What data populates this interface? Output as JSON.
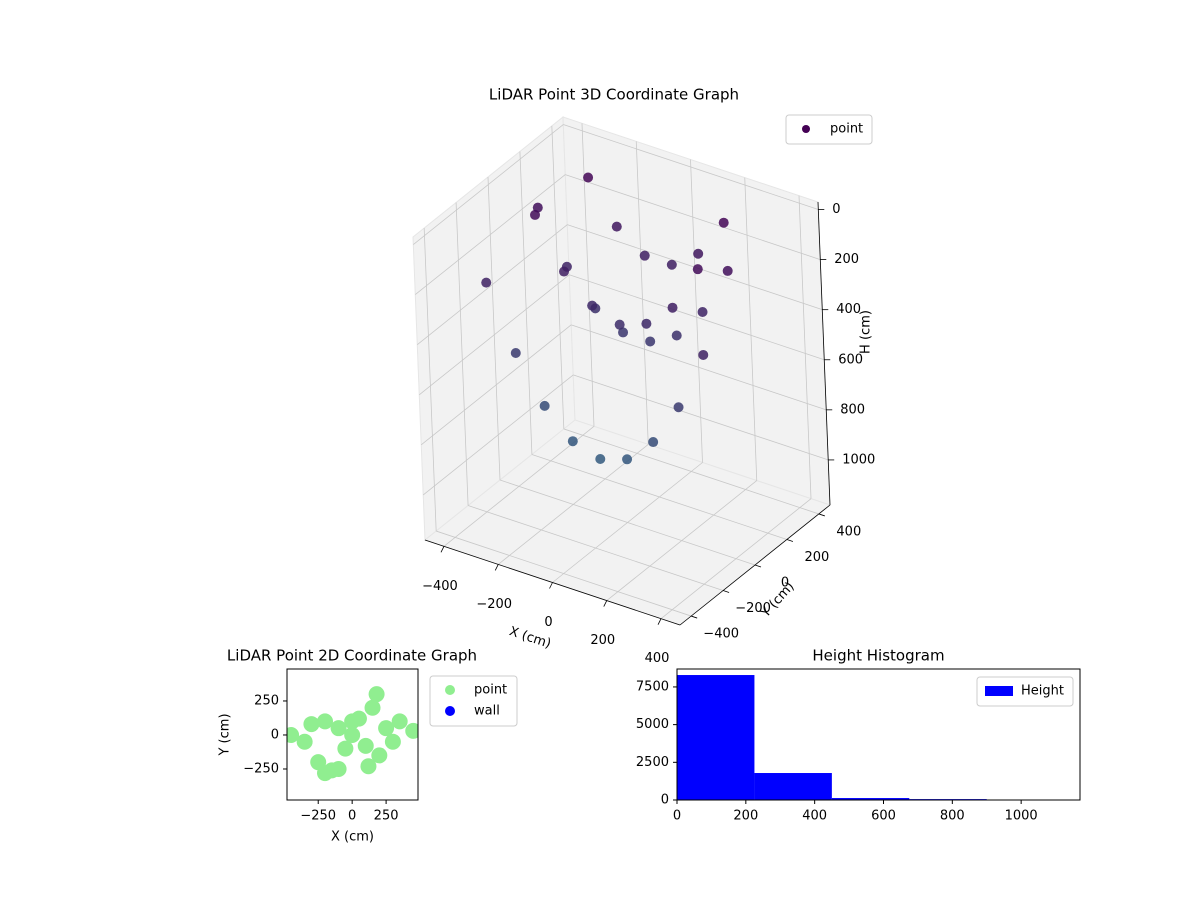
{
  "chart_data": [
    {
      "type": "scatter3d",
      "title": "LiDAR Point 3D Coordinate Graph",
      "xlabel": "X (cm)",
      "ylabel": "Y (cm)",
      "zlabel": "H (cm)",
      "xlim": [
        -470,
        470
      ],
      "ylim": [
        -470,
        470
      ],
      "zlim": [
        -30,
        1180
      ],
      "zinverted": true,
      "xticks": [
        {
          "value": -400,
          "label": "−400"
        },
        {
          "value": -200,
          "label": "−200"
        },
        0,
        200,
        400
      ],
      "yticks": [
        {
          "value": -400,
          "label": "−400"
        },
        {
          "value": -200,
          "label": "−200"
        },
        0,
        200,
        400
      ],
      "zticks": [
        0,
        200,
        400,
        600,
        800,
        1000
      ],
      "colormap": [
        "#440154",
        "#2c7a8e"
      ],
      "legend_loc": "upper right",
      "series": [
        {
          "name": "point",
          "color": "#440154",
          "x": [
            -400,
            -300,
            -200,
            -100,
            0,
            100,
            200,
            300,
            400,
            -350,
            -250,
            -150,
            -50,
            50,
            150,
            250,
            350,
            -250,
            -150,
            -50,
            50,
            150,
            250,
            -300,
            -200,
            -100,
            0,
            100,
            200,
            300
          ],
          "y": [
            -150,
            -150,
            -150,
            -150,
            -150,
            -150,
            -150,
            -150,
            -150,
            100,
            100,
            100,
            100,
            100,
            100,
            100,
            100,
            250,
            250,
            250,
            250,
            250,
            250,
            0,
            0,
            0,
            0,
            0,
            0,
            0
          ],
          "z": [
            290,
            535,
            710,
            815,
            850,
            815,
            710,
            535,
            290,
            100,
            300,
            430,
            490,
            490,
            430,
            300,
            100,
            20,
            180,
            260,
            260,
            180,
            20,
            60,
            250,
            350,
            390,
            350,
            250,
            60
          ]
        }
      ]
    },
    {
      "type": "scatter",
      "title": "LiDAR Point 2D Coordinate Graph",
      "xlabel": "X (cm)",
      "ylabel": "Y (cm)",
      "xlim": [
        -480,
        485
      ],
      "ylim": [
        -478,
        485
      ],
      "xticks": [
        {
          "value": -250,
          "label": "−250"
        },
        0,
        250
      ],
      "yticks": [
        {
          "value": -250,
          "label": "−250"
        },
        0,
        250
      ],
      "legend_loc": "outside upper left",
      "series": [
        {
          "name": "point",
          "color": "#90ee90",
          "x": [
            -450,
            -350,
            -300,
            -250,
            -200,
            -150,
            -100,
            -50,
            0,
            50,
            100,
            150,
            200,
            180,
            250,
            300,
            350,
            450,
            -100,
            120,
            -200,
            0
          ],
          "y": [
            0,
            -50,
            80,
            -200,
            100,
            -260,
            50,
            -100,
            0,
            120,
            -80,
            200,
            -150,
            300,
            50,
            -50,
            100,
            30,
            -250,
            -230,
            -280,
            100
          ]
        },
        {
          "name": "wall",
          "color": "#0000ff",
          "x": [],
          "y": []
        }
      ]
    },
    {
      "type": "histogram",
      "title": "Height Histogram",
      "xlim": [
        0,
        1171
      ],
      "ylim": [
        0,
        8690
      ],
      "xticks": [
        0,
        200,
        400,
        600,
        800,
        1000
      ],
      "yticks": [
        0,
        2500,
        5000,
        7500
      ],
      "legend_loc": "upper right",
      "series": [
        {
          "name": "Height",
          "color": "#0000ff",
          "bins": [
            0,
            225,
            450,
            675,
            900,
            1125
          ],
          "values": [
            8290,
            1790,
            130,
            60,
            10
          ]
        }
      ]
    }
  ]
}
